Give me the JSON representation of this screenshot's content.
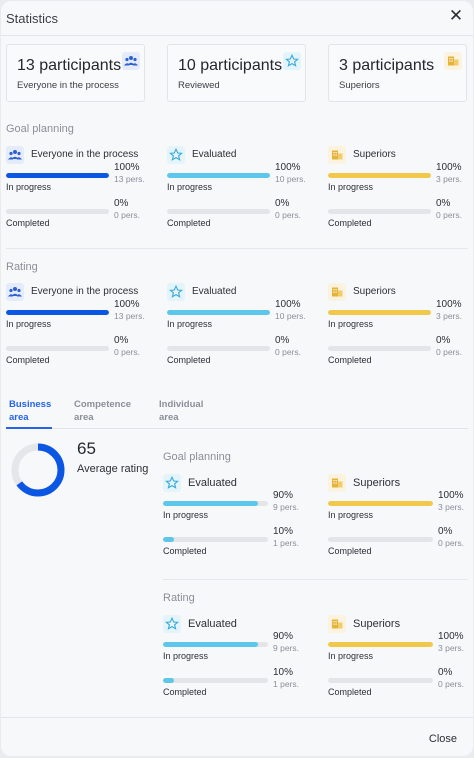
{
  "header": {
    "title": "Statistics"
  },
  "colors": {
    "blue": "#0b57e3",
    "sky": "#5cc7ea",
    "yellow": "#f2c84b",
    "track": "#e4e5e9"
  },
  "cards": [
    {
      "count": "13 participants",
      "label": "Everyone in the process",
      "icon": "people-icon"
    },
    {
      "count": "10 participants",
      "label": "Reviewed",
      "icon": "star-icon"
    },
    {
      "count": "3 participants",
      "label": "Superiors",
      "icon": "building-icon"
    }
  ],
  "goal_planning": {
    "title": "Goal planning",
    "groups": [
      {
        "label": "Everyone in the process",
        "icon": "people-icon",
        "in_progress": {
          "label": "In progress",
          "pct": "100%",
          "pers": "13 pers.",
          "value": 1.0
        },
        "completed": {
          "label": "Completed",
          "pct": "0%",
          "pers": "0 pers.",
          "value": 0
        }
      },
      {
        "label": "Evaluated",
        "icon": "star-icon",
        "in_progress": {
          "label": "In progress",
          "pct": "100%",
          "pers": "10 pers.",
          "value": 1.0
        },
        "completed": {
          "label": "Completed",
          "pct": "0%",
          "pers": "0 pers.",
          "value": 0
        }
      },
      {
        "label": "Superiors",
        "icon": "building-icon",
        "in_progress": {
          "label": "In progress",
          "pct": "100%",
          "pers": "3 pers.",
          "value": 1.0
        },
        "completed": {
          "label": "Completed",
          "pct": "0%",
          "pers": "0 pers.",
          "value": 0
        }
      }
    ]
  },
  "rating": {
    "title": "Rating",
    "groups": [
      {
        "label": "Everyone in the process",
        "icon": "people-icon",
        "in_progress": {
          "label": "In progress",
          "pct": "100%",
          "pers": "13 pers.",
          "value": 1.0
        },
        "completed": {
          "label": "Completed",
          "pct": "0%",
          "pers": "0 pers.",
          "value": 0
        }
      },
      {
        "label": "Evaluated",
        "icon": "star-icon",
        "in_progress": {
          "label": "In progress",
          "pct": "100%",
          "pers": "10 pers.",
          "value": 1.0
        },
        "completed": {
          "label": "Completed",
          "pct": "0%",
          "pers": "0 pers.",
          "value": 0
        }
      },
      {
        "label": "Superiors",
        "icon": "building-icon",
        "in_progress": {
          "label": "In progress",
          "pct": "100%",
          "pers": "3 pers.",
          "value": 1.0
        },
        "completed": {
          "label": "Completed",
          "pct": "0%",
          "pers": "0 pers.",
          "value": 0
        }
      }
    ]
  },
  "tabs": [
    {
      "line1": "Business",
      "line2": "area",
      "active": true
    },
    {
      "line1": "Competence",
      "line2": "area",
      "active": false
    },
    {
      "line1": "Individual",
      "line2": "area",
      "active": false
    }
  ],
  "business_area": {
    "average_value": "65",
    "average_label": "Average rating",
    "donut_fraction": 0.65,
    "goal_planning": {
      "title": "Goal planning",
      "groups": [
        {
          "label": "Evaluated",
          "icon": "star-icon",
          "in_progress": {
            "label": "In progress",
            "pct": "90%",
            "pers": "9 pers.",
            "value": 0.9
          },
          "completed": {
            "label": "Completed",
            "pct": "10%",
            "pers": "1 pers.",
            "value": 0.1
          }
        },
        {
          "label": "Superiors",
          "icon": "building-icon",
          "in_progress": {
            "label": "In progress",
            "pct": "100%",
            "pers": "3 pers.",
            "value": 1.0
          },
          "completed": {
            "label": "Completed",
            "pct": "0%",
            "pers": "0 pers.",
            "value": 0
          }
        }
      ]
    },
    "rating": {
      "title": "Rating",
      "groups": [
        {
          "label": "Evaluated",
          "icon": "star-icon",
          "in_progress": {
            "label": "In progress",
            "pct": "90%",
            "pers": "9 pers.",
            "value": 0.9
          },
          "completed": {
            "label": "Completed",
            "pct": "10%",
            "pers": "1 pers.",
            "value": 0.1
          }
        },
        {
          "label": "Superiors",
          "icon": "building-icon",
          "in_progress": {
            "label": "In progress",
            "pct": "100%",
            "pers": "3 pers.",
            "value": 1.0
          },
          "completed": {
            "label": "Completed",
            "pct": "0%",
            "pers": "0 pers.",
            "value": 0
          }
        }
      ]
    }
  },
  "footer": {
    "close_label": "Close"
  }
}
